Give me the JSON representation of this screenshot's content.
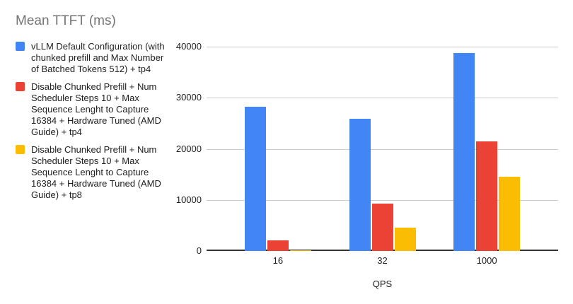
{
  "title": "Mean TTFT (ms)",
  "legend": {
    "items": [
      {
        "label": "vLLM Default Configuration (with\nchunked prefill and Max Number\nof Batched Tokens 512) + tp4",
        "color": "#4285f4"
      },
      {
        "label": "Disable Chunked Prefill + Num\nScheduler Steps 10 + Max\nSequence Lenght to Capture\n16384 + Hardware Tuned (AMD\nGuide) + tp4",
        "color": "#ea4335"
      },
      {
        "label": "Disable Chunked Prefill + Num\nScheduler Steps 10 + Max\nSequence Lenght to Capture\n16384 + Hardware Tuned (AMD\nGuide) + tp8",
        "color": "#fbbc04"
      }
    ]
  },
  "chart_data": {
    "type": "bar",
    "title": "Mean TTFT (ms)",
    "categories": [
      "16",
      "32",
      "1000"
    ],
    "series": [
      {
        "name": "vLLM Default Configuration (with chunked prefill and Max Number of Batched Tokens 512) + tp4",
        "color": "#4285f4",
        "values": [
          28300,
          25900,
          38800
        ]
      },
      {
        "name": "Disable Chunked Prefill + Num Scheduler Steps 10 + Max Sequence Lenght to Capture 16384 + Hardware Tuned (AMD Guide) + tp4",
        "color": "#ea4335",
        "values": [
          2100,
          9300,
          21400
        ]
      },
      {
        "name": "Disable Chunked Prefill + Num Scheduler Steps 10 + Max Sequence Lenght to Capture 16384 + Hardware Tuned (AMD Guide) + tp8",
        "color": "#fbbc04",
        "values": [
          200,
          4600,
          14500
        ]
      }
    ],
    "xlabel": "QPS",
    "ylabel": "",
    "ylim": [
      0,
      40000
    ],
    "yticks": [
      0,
      10000,
      20000,
      30000,
      40000
    ],
    "grid": true,
    "legend_position": "left"
  },
  "colors": {
    "background": "#ffffff",
    "gridline": "#cccccc",
    "axis_line": "#333333",
    "title_text": "#757575",
    "label_text": "#212121"
  }
}
